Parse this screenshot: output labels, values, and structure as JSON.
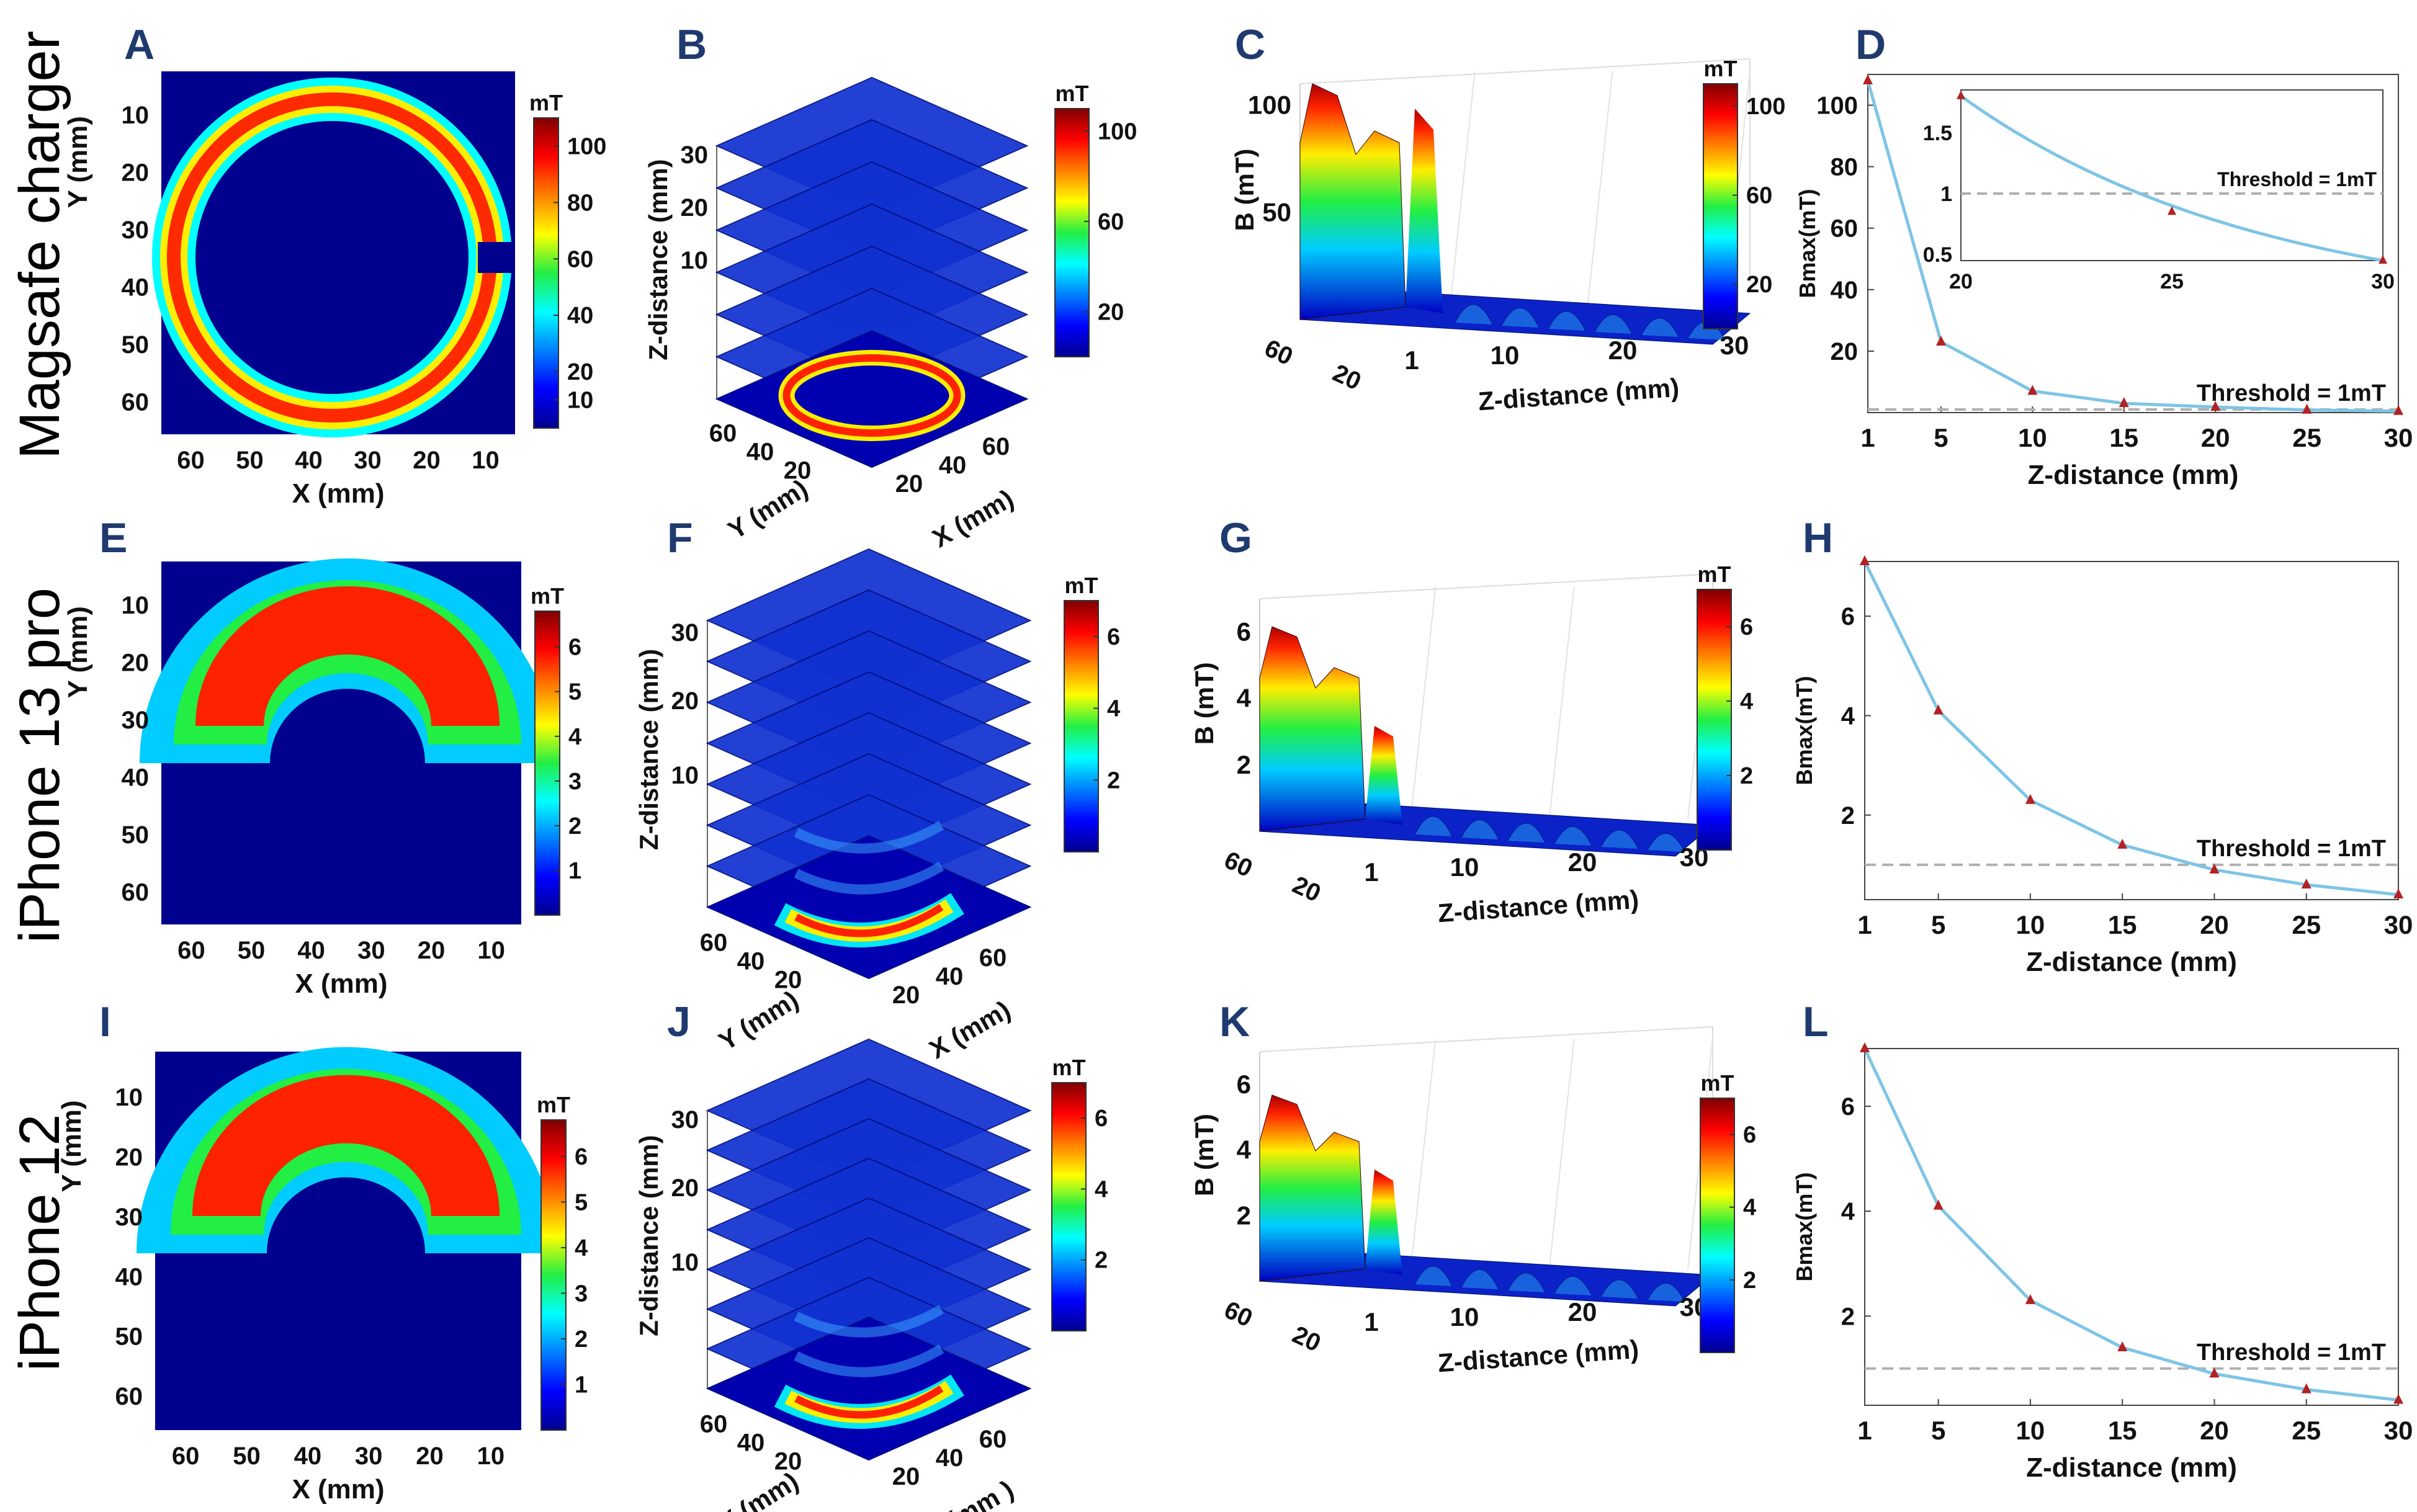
{
  "figure": {
    "row_labels": [
      "Magsafe charger",
      "iPhone 13 pro",
      "iPhone 12"
    ],
    "colorbar_unit": "mT",
    "colors": {
      "panel_label": "#1f3a6e",
      "curve": "#7ec4e6",
      "marker": "#b22222",
      "threshold_line": "#b0b0b0"
    }
  },
  "chart_data": [
    {
      "panel": "A",
      "type": "heatmap",
      "title": "",
      "xlabel": "X (mm)",
      "ylabel": "Y (mm)",
      "xticks": [
        "60",
        "50",
        "40",
        "30",
        "20",
        "10"
      ],
      "yticks": [
        "10",
        "20",
        "30",
        "40",
        "50",
        "60"
      ],
      "colorbar": {
        "label": "mT",
        "ticks": [
          "100",
          "80",
          "60",
          "40",
          "20",
          "10"
        ],
        "range": [
          0,
          110
        ]
      }
    },
    {
      "panel": "B",
      "type": "surface-3d-slices",
      "xlabel": "X (mm)",
      "ylabel": "Y (mm)",
      "zlabel": "Z-distance (mm)",
      "zticks": [
        "30",
        "20",
        "10"
      ],
      "yticks": [
        "60",
        "40",
        "20"
      ],
      "xticks": [
        "20",
        "40",
        "60"
      ],
      "colorbar": {
        "label": "mT",
        "ticks": [
          "100",
          "60",
          "20"
        ],
        "range": [
          0,
          110
        ]
      }
    },
    {
      "panel": "C",
      "type": "surface-3d",
      "xlabel": "Z-distance (mm)",
      "ylabel": "B (mT)",
      "xticks": [
        "1",
        "10",
        "20",
        "30"
      ],
      "yticks": [
        "100",
        "50"
      ],
      "depth_ticks": [
        "60",
        "20"
      ],
      "colorbar": {
        "label": "mT",
        "ticks": [
          "100",
          "60",
          "20"
        ],
        "range": [
          0,
          110
        ]
      }
    },
    {
      "panel": "D",
      "type": "line",
      "xlabel": "Z-distance (mm)",
      "ylabel": "Bmax(mT)",
      "x": [
        1,
        5,
        10,
        15,
        20,
        25,
        30
      ],
      "y": [
        108,
        23,
        7,
        3,
        1.8,
        0.85,
        0.45
      ],
      "xticks": [
        "1",
        "5",
        "10",
        "15",
        "20",
        "25",
        "30"
      ],
      "yticks": [
        "20",
        "40",
        "60",
        "80",
        "100"
      ],
      "ylim": [
        0,
        110
      ],
      "threshold": {
        "value": 1,
        "label": "Threshold = 1mT"
      },
      "inset": {
        "x": [
          20,
          25,
          30
        ],
        "y": [
          1.8,
          0.85,
          0.45
        ],
        "xticks": [
          "20",
          "25",
          "30"
        ],
        "yticks": [
          "0.5",
          "1",
          "1.5"
        ],
        "ylim": [
          0.45,
          1.85
        ],
        "threshold_label": "Threshold = 1mT"
      }
    },
    {
      "panel": "E",
      "type": "heatmap",
      "xlabel": "X (mm)",
      "ylabel": "Y (mm)",
      "xticks": [
        "60",
        "50",
        "40",
        "30",
        "20",
        "10"
      ],
      "yticks": [
        "10",
        "20",
        "30",
        "40",
        "50",
        "60"
      ],
      "colorbar": {
        "label": "mT",
        "ticks": [
          "6",
          "5",
          "4",
          "3",
          "2",
          "1"
        ],
        "range": [
          0,
          6.8
        ]
      }
    },
    {
      "panel": "F",
      "type": "surface-3d-slices",
      "xlabel": "X (mm)",
      "ylabel": "Y (mm)",
      "zlabel": "Z-distance (mm)",
      "zticks": [
        "30",
        "20",
        "10"
      ],
      "yticks": [
        "60",
        "40",
        "20"
      ],
      "xticks": [
        "20",
        "40",
        "60"
      ],
      "colorbar": {
        "label": "mT",
        "ticks": [
          "6",
          "4",
          "2"
        ],
        "range": [
          0,
          7
        ]
      }
    },
    {
      "panel": "G",
      "type": "surface-3d",
      "xlabel": "Z-distance (mm)",
      "ylabel": "B (mT)",
      "xticks": [
        "1",
        "10",
        "20",
        "30"
      ],
      "yticks": [
        "6",
        "4",
        "2"
      ],
      "depth_ticks": [
        "60",
        "20"
      ],
      "colorbar": {
        "label": "mT",
        "ticks": [
          "6",
          "4",
          "2"
        ],
        "range": [
          0,
          7
        ]
      }
    },
    {
      "panel": "H",
      "type": "line",
      "xlabel": "Z-distance (mm)",
      "ylabel": "Bmax(mT)",
      "x": [
        1,
        5,
        10,
        15,
        20,
        25,
        30
      ],
      "y": [
        7.1,
        4.1,
        2.3,
        1.4,
        0.9,
        0.6,
        0.4
      ],
      "xticks": [
        "1",
        "5",
        "10",
        "15",
        "20",
        "25",
        "30"
      ],
      "yticks": [
        "2",
        "4",
        "6"
      ],
      "ylim": [
        0.3,
        7.1
      ],
      "threshold": {
        "value": 1,
        "label": "Threshold = 1mT"
      }
    },
    {
      "panel": "I",
      "type": "heatmap",
      "xlabel": "X (mm)",
      "ylabel": "Y (mm)",
      "xticks": [
        "60",
        "50",
        "40",
        "30",
        "20",
        "10"
      ],
      "yticks": [
        "10",
        "20",
        "30",
        "40",
        "50",
        "60"
      ],
      "colorbar": {
        "label": "mT",
        "ticks": [
          "6",
          "5",
          "4",
          "3",
          "2",
          "1"
        ],
        "range": [
          0,
          6.8
        ]
      }
    },
    {
      "panel": "J",
      "type": "surface-3d-slices",
      "xlabel": "X (mm )",
      "ylabel": "Y (mm)",
      "zlabel": "Z-distance (mm)",
      "zticks": [
        "30",
        "20",
        "10"
      ],
      "yticks": [
        "60",
        "40",
        "20"
      ],
      "xticks": [
        "20",
        "40",
        "60"
      ],
      "colorbar": {
        "label": "mT",
        "ticks": [
          "6",
          "4",
          "2"
        ],
        "range": [
          0,
          7
        ]
      }
    },
    {
      "panel": "K",
      "type": "surface-3d",
      "xlabel": "Z-distance (mm)",
      "ylabel": "B (mT)",
      "xticks": [
        "1",
        "10",
        "20",
        "30"
      ],
      "yticks": [
        "6",
        "4",
        "2"
      ],
      "depth_ticks": [
        "60",
        "20"
      ],
      "colorbar": {
        "label": "mT",
        "ticks": [
          "6",
          "4",
          "2"
        ],
        "range": [
          0,
          7
        ]
      }
    },
    {
      "panel": "L",
      "type": "line",
      "xlabel": "Z-distance (mm)",
      "ylabel": "Bmax(mT)",
      "x": [
        1,
        5,
        10,
        15,
        20,
        25,
        30
      ],
      "y": [
        7.1,
        4.1,
        2.3,
        1.4,
        0.9,
        0.6,
        0.4
      ],
      "xticks": [
        "1",
        "5",
        "10",
        "15",
        "20",
        "25",
        "30"
      ],
      "yticks": [
        "2",
        "4",
        "6"
      ],
      "ylim": [
        0.3,
        7.1
      ],
      "threshold": {
        "value": 1,
        "label": "Threshold = 1mT"
      }
    }
  ]
}
